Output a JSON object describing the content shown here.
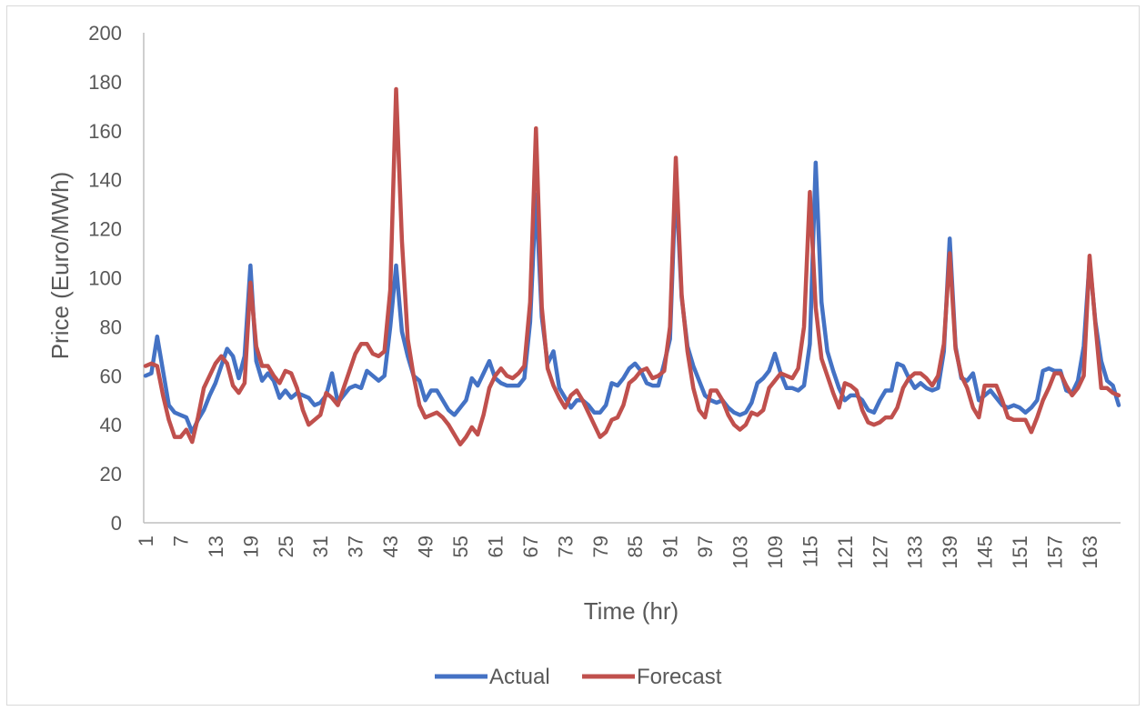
{
  "chart_data": {
    "type": "line",
    "title": "",
    "xlabel": "Time (hr)",
    "ylabel": "Price (Euro/MWh)",
    "ylim": [
      0,
      200
    ],
    "yticks": [
      0,
      20,
      40,
      60,
      80,
      100,
      120,
      140,
      160,
      180,
      200
    ],
    "xlim": [
      1,
      168
    ],
    "xticks": [
      1,
      7,
      13,
      19,
      25,
      31,
      37,
      43,
      49,
      55,
      61,
      67,
      73,
      79,
      85,
      91,
      97,
      103,
      109,
      115,
      121,
      127,
      133,
      139,
      145,
      151,
      157,
      163
    ],
    "grid": false,
    "legend_position": "bottom",
    "series": [
      {
        "name": "Actual",
        "color": "#4472C4",
        "points": [
          [
            1,
            60
          ],
          [
            2,
            61
          ],
          [
            3,
            76
          ],
          [
            4,
            62
          ],
          [
            5,
            48
          ],
          [
            6,
            45
          ],
          [
            7,
            44
          ],
          [
            8,
            43
          ],
          [
            9,
            37
          ],
          [
            10,
            42
          ],
          [
            11,
            46
          ],
          [
            12,
            52
          ],
          [
            13,
            57
          ],
          [
            14,
            64
          ],
          [
            15,
            71
          ],
          [
            16,
            68
          ],
          [
            17,
            59
          ],
          [
            18,
            68
          ],
          [
            19,
            105
          ],
          [
            20,
            66
          ],
          [
            21,
            58
          ],
          [
            22,
            61
          ],
          [
            23,
            58
          ],
          [
            24,
            51
          ],
          [
            25,
            54
          ],
          [
            26,
            51
          ],
          [
            27,
            53
          ],
          [
            28,
            52
          ],
          [
            29,
            51
          ],
          [
            30,
            48
          ],
          [
            31,
            49
          ],
          [
            32,
            52
          ],
          [
            33,
            61
          ],
          [
            34,
            49
          ],
          [
            35,
            52
          ],
          [
            36,
            55
          ],
          [
            37,
            56
          ],
          [
            38,
            55
          ],
          [
            39,
            62
          ],
          [
            40,
            60
          ],
          [
            41,
            58
          ],
          [
            42,
            60
          ],
          [
            43,
            80
          ],
          [
            44,
            105
          ],
          [
            45,
            78
          ],
          [
            46,
            68
          ],
          [
            47,
            60
          ],
          [
            48,
            58
          ],
          [
            49,
            50
          ],
          [
            50,
            54
          ],
          [
            51,
            54
          ],
          [
            52,
            50
          ],
          [
            53,
            46
          ],
          [
            54,
            44
          ],
          [
            55,
            47
          ],
          [
            56,
            50
          ],
          [
            57,
            59
          ],
          [
            58,
            56
          ],
          [
            59,
            61
          ],
          [
            60,
            66
          ],
          [
            61,
            59
          ],
          [
            62,
            57
          ],
          [
            63,
            56
          ],
          [
            64,
            56
          ],
          [
            65,
            56
          ],
          [
            66,
            59
          ],
          [
            67,
            82
          ],
          [
            68,
            134
          ],
          [
            69,
            84
          ],
          [
            70,
            65
          ],
          [
            71,
            70
          ],
          [
            72,
            55
          ],
          [
            73,
            51
          ],
          [
            74,
            47
          ],
          [
            75,
            50
          ],
          [
            76,
            50
          ],
          [
            77,
            48
          ],
          [
            78,
            45
          ],
          [
            79,
            45
          ],
          [
            80,
            48
          ],
          [
            81,
            57
          ],
          [
            82,
            56
          ],
          [
            83,
            59
          ],
          [
            84,
            63
          ],
          [
            85,
            65
          ],
          [
            86,
            62
          ],
          [
            87,
            57
          ],
          [
            88,
            56
          ],
          [
            89,
            56
          ],
          [
            90,
            65
          ],
          [
            91,
            75
          ],
          [
            92,
            140
          ],
          [
            93,
            92
          ],
          [
            94,
            72
          ],
          [
            95,
            64
          ],
          [
            96,
            58
          ],
          [
            97,
            52
          ],
          [
            98,
            50
          ],
          [
            99,
            49
          ],
          [
            100,
            50
          ],
          [
            101,
            47
          ],
          [
            102,
            45
          ],
          [
            103,
            44
          ],
          [
            104,
            45
          ],
          [
            105,
            49
          ],
          [
            106,
            57
          ],
          [
            107,
            59
          ],
          [
            108,
            62
          ],
          [
            109,
            69
          ],
          [
            110,
            61
          ],
          [
            111,
            55
          ],
          [
            112,
            55
          ],
          [
            113,
            54
          ],
          [
            114,
            56
          ],
          [
            115,
            73
          ],
          [
            116,
            147
          ],
          [
            117,
            90
          ],
          [
            118,
            70
          ],
          [
            119,
            62
          ],
          [
            120,
            55
          ],
          [
            121,
            50
          ],
          [
            122,
            52
          ],
          [
            123,
            52
          ],
          [
            124,
            50
          ],
          [
            125,
            46
          ],
          [
            126,
            45
          ],
          [
            127,
            50
          ],
          [
            128,
            54
          ],
          [
            129,
            54
          ],
          [
            130,
            65
          ],
          [
            131,
            64
          ],
          [
            132,
            59
          ],
          [
            133,
            55
          ],
          [
            134,
            57
          ],
          [
            135,
            55
          ],
          [
            136,
            54
          ],
          [
            137,
            55
          ],
          [
            138,
            70
          ],
          [
            139,
            116
          ],
          [
            140,
            72
          ],
          [
            141,
            59
          ],
          [
            142,
            58
          ],
          [
            143,
            61
          ],
          [
            144,
            50
          ],
          [
            145,
            52
          ],
          [
            146,
            54
          ],
          [
            147,
            51
          ],
          [
            148,
            48
          ],
          [
            149,
            47
          ],
          [
            150,
            48
          ],
          [
            151,
            47
          ],
          [
            152,
            45
          ],
          [
            153,
            47
          ],
          [
            154,
            50
          ],
          [
            155,
            62
          ],
          [
            156,
            63
          ],
          [
            157,
            62
          ],
          [
            158,
            62
          ],
          [
            159,
            54
          ],
          [
            160,
            53
          ],
          [
            161,
            58
          ],
          [
            162,
            72
          ],
          [
            163,
            107
          ],
          [
            164,
            82
          ],
          [
            165,
            66
          ],
          [
            166,
            58
          ],
          [
            167,
            56
          ],
          [
            168,
            48
          ]
        ]
      },
      {
        "name": "Forecast",
        "color": "#C0504D",
        "points": [
          [
            1,
            64
          ],
          [
            2,
            65
          ],
          [
            3,
            64
          ],
          [
            4,
            52
          ],
          [
            5,
            42
          ],
          [
            6,
            35
          ],
          [
            7,
            35
          ],
          [
            8,
            38
          ],
          [
            9,
            33
          ],
          [
            10,
            43
          ],
          [
            11,
            55
          ],
          [
            12,
            60
          ],
          [
            13,
            65
          ],
          [
            14,
            68
          ],
          [
            15,
            65
          ],
          [
            16,
            56
          ],
          [
            17,
            53
          ],
          [
            18,
            57
          ],
          [
            19,
            98
          ],
          [
            20,
            72
          ],
          [
            21,
            64
          ],
          [
            22,
            64
          ],
          [
            23,
            60
          ],
          [
            24,
            57
          ],
          [
            25,
            62
          ],
          [
            26,
            61
          ],
          [
            27,
            55
          ],
          [
            28,
            46
          ],
          [
            29,
            40
          ],
          [
            30,
            42
          ],
          [
            31,
            44
          ],
          [
            32,
            53
          ],
          [
            33,
            51
          ],
          [
            34,
            48
          ],
          [
            35,
            55
          ],
          [
            36,
            62
          ],
          [
            37,
            69
          ],
          [
            38,
            73
          ],
          [
            39,
            73
          ],
          [
            40,
            69
          ],
          [
            41,
            68
          ],
          [
            42,
            70
          ],
          [
            43,
            95
          ],
          [
            44,
            177
          ],
          [
            45,
            115
          ],
          [
            46,
            75
          ],
          [
            47,
            60
          ],
          [
            48,
            48
          ],
          [
            49,
            43
          ],
          [
            50,
            44
          ],
          [
            51,
            45
          ],
          [
            52,
            43
          ],
          [
            53,
            40
          ],
          [
            54,
            36
          ],
          [
            55,
            32
          ],
          [
            56,
            35
          ],
          [
            57,
            39
          ],
          [
            58,
            36
          ],
          [
            59,
            44
          ],
          [
            60,
            55
          ],
          [
            61,
            60
          ],
          [
            62,
            63
          ],
          [
            63,
            60
          ],
          [
            64,
            59
          ],
          [
            65,
            61
          ],
          [
            66,
            64
          ],
          [
            67,
            90
          ],
          [
            68,
            161
          ],
          [
            69,
            88
          ],
          [
            70,
            63
          ],
          [
            71,
            56
          ],
          [
            72,
            51
          ],
          [
            73,
            47
          ],
          [
            74,
            52
          ],
          [
            75,
            54
          ],
          [
            76,
            50
          ],
          [
            77,
            45
          ],
          [
            78,
            40
          ],
          [
            79,
            35
          ],
          [
            80,
            37
          ],
          [
            81,
            42
          ],
          [
            82,
            43
          ],
          [
            83,
            48
          ],
          [
            84,
            57
          ],
          [
            85,
            59
          ],
          [
            86,
            62
          ],
          [
            87,
            63
          ],
          [
            88,
            59
          ],
          [
            89,
            60
          ],
          [
            90,
            62
          ],
          [
            91,
            80
          ],
          [
            92,
            149
          ],
          [
            93,
            93
          ],
          [
            94,
            70
          ],
          [
            95,
            55
          ],
          [
            96,
            46
          ],
          [
            97,
            43
          ],
          [
            98,
            54
          ],
          [
            99,
            54
          ],
          [
            100,
            50
          ],
          [
            101,
            44
          ],
          [
            102,
            40
          ],
          [
            103,
            38
          ],
          [
            104,
            40
          ],
          [
            105,
            45
          ],
          [
            106,
            44
          ],
          [
            107,
            46
          ],
          [
            108,
            55
          ],
          [
            109,
            58
          ],
          [
            110,
            61
          ],
          [
            111,
            60
          ],
          [
            112,
            59
          ],
          [
            113,
            63
          ],
          [
            114,
            80
          ],
          [
            115,
            135
          ],
          [
            116,
            88
          ],
          [
            117,
            67
          ],
          [
            118,
            60
          ],
          [
            119,
            53
          ],
          [
            120,
            47
          ],
          [
            121,
            57
          ],
          [
            122,
            56
          ],
          [
            123,
            54
          ],
          [
            124,
            46
          ],
          [
            125,
            41
          ],
          [
            126,
            40
          ],
          [
            127,
            41
          ],
          [
            128,
            43
          ],
          [
            129,
            43
          ],
          [
            130,
            47
          ],
          [
            131,
            55
          ],
          [
            132,
            59
          ],
          [
            133,
            61
          ],
          [
            134,
            61
          ],
          [
            135,
            59
          ],
          [
            136,
            56
          ],
          [
            137,
            60
          ],
          [
            138,
            73
          ],
          [
            139,
            110
          ],
          [
            140,
            71
          ],
          [
            141,
            60
          ],
          [
            142,
            55
          ],
          [
            143,
            47
          ],
          [
            144,
            43
          ],
          [
            145,
            56
          ],
          [
            146,
            56
          ],
          [
            147,
            56
          ],
          [
            148,
            50
          ],
          [
            149,
            43
          ],
          [
            150,
            42
          ],
          [
            151,
            42
          ],
          [
            152,
            42
          ],
          [
            153,
            37
          ],
          [
            154,
            43
          ],
          [
            155,
            50
          ],
          [
            156,
            55
          ],
          [
            157,
            61
          ],
          [
            158,
            61
          ],
          [
            159,
            56
          ],
          [
            160,
            52
          ],
          [
            161,
            55
          ],
          [
            162,
            60
          ],
          [
            163,
            109
          ],
          [
            164,
            81
          ],
          [
            165,
            55
          ],
          [
            166,
            55
          ],
          [
            167,
            53
          ],
          [
            168,
            52
          ]
        ]
      }
    ]
  }
}
